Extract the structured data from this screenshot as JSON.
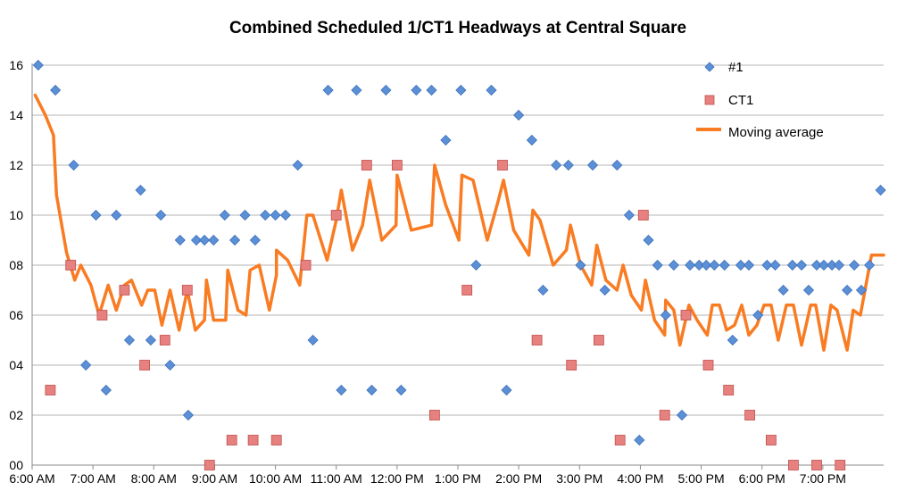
{
  "chart_data": {
    "type": "scatter",
    "title": "Combined Scheduled 1/CT1 Headways at Central Square",
    "xlabel": "",
    "ylabel": "",
    "x_range": [
      "6:00 AM",
      "8:00 PM"
    ],
    "y_range": [
      0,
      16
    ],
    "x_tick_labels": [
      "6:00 AM",
      "7:00 AM",
      "8:00 AM",
      "9:00 AM",
      "10:00 AM",
      "11:00 AM",
      "12:00 PM",
      "1:00 PM",
      "2:00 PM",
      "3:00 PM",
      "4:00 PM",
      "5:00 PM",
      "6:00 PM",
      "7:00 PM"
    ],
    "y_tick_labels": [
      "00",
      "02",
      "04",
      "06",
      "08",
      "10",
      "12",
      "14",
      "16"
    ],
    "gridlines": "horizontal",
    "legend_position": "right",
    "colors": {
      "#1": "#5b8fd6",
      "CT1": "#e6817f",
      "Moving average": "#f97b22"
    },
    "series": [
      {
        "name": "#1",
        "marker": "diamond",
        "points": [
          {
            "x": "6:06 AM",
            "y": 16
          },
          {
            "x": "6:23 AM",
            "y": 15
          },
          {
            "x": "6:41 AM",
            "y": 12
          },
          {
            "x": "6:53 AM",
            "y": 4
          },
          {
            "x": "7:03 AM",
            "y": 10
          },
          {
            "x": "7:13 AM",
            "y": 3
          },
          {
            "x": "7:23 AM",
            "y": 10
          },
          {
            "x": "7:36 AM",
            "y": 5
          },
          {
            "x": "7:47 AM",
            "y": 11
          },
          {
            "x": "7:57 AM",
            "y": 5
          },
          {
            "x": "8:07 AM",
            "y": 10
          },
          {
            "x": "8:16 AM",
            "y": 4
          },
          {
            "x": "8:26 AM",
            "y": 9
          },
          {
            "x": "8:34 AM",
            "y": 2
          },
          {
            "x": "8:42 AM",
            "y": 9
          },
          {
            "x": "8:50 AM",
            "y": 9
          },
          {
            "x": "8:59 AM",
            "y": 9
          },
          {
            "x": "9:10 AM",
            "y": 10
          },
          {
            "x": "9:20 AM",
            "y": 9
          },
          {
            "x": "9:30 AM",
            "y": 10
          },
          {
            "x": "9:40 AM",
            "y": 9
          },
          {
            "x": "9:50 AM",
            "y": 10
          },
          {
            "x": "10:00 AM",
            "y": 10
          },
          {
            "x": "10:10 AM",
            "y": 10
          },
          {
            "x": "10:22 AM",
            "y": 12
          },
          {
            "x": "10:37 AM",
            "y": 5
          },
          {
            "x": "10:52 AM",
            "y": 15
          },
          {
            "x": "11:05 AM",
            "y": 3
          },
          {
            "x": "11:20 AM",
            "y": 15
          },
          {
            "x": "11:35 AM",
            "y": 3
          },
          {
            "x": "11:49 AM",
            "y": 15
          },
          {
            "x": "12:04 PM",
            "y": 3
          },
          {
            "x": "12:19 PM",
            "y": 15
          },
          {
            "x": "12:34 PM",
            "y": 15
          },
          {
            "x": "12:48 PM",
            "y": 13
          },
          {
            "x": "1:03 PM",
            "y": 15
          },
          {
            "x": "1:18 PM",
            "y": 8
          },
          {
            "x": "1:33 PM",
            "y": 15
          },
          {
            "x": "1:48 PM",
            "y": 3
          },
          {
            "x": "2:00 PM",
            "y": 14
          },
          {
            "x": "2:13 PM",
            "y": 13
          },
          {
            "x": "2:24 PM",
            "y": 7
          },
          {
            "x": "2:37 PM",
            "y": 12
          },
          {
            "x": "2:49 PM",
            "y": 12
          },
          {
            "x": "3:01 PM",
            "y": 8
          },
          {
            "x": "3:13 PM",
            "y": 12
          },
          {
            "x": "3:25 PM",
            "y": 7
          },
          {
            "x": "3:37 PM",
            "y": 12
          },
          {
            "x": "3:49 PM",
            "y": 10
          },
          {
            "x": "3:59 PM",
            "y": 1
          },
          {
            "x": "4:08 PM",
            "y": 9
          },
          {
            "x": "4:17 PM",
            "y": 8
          },
          {
            "x": "4:25 PM",
            "y": 6
          },
          {
            "x": "4:33 PM",
            "y": 8
          },
          {
            "x": "4:41 PM",
            "y": 2
          },
          {
            "x": "4:49 PM",
            "y": 8
          },
          {
            "x": "4:58 PM",
            "y": 8
          },
          {
            "x": "5:05 PM",
            "y": 8
          },
          {
            "x": "5:13 PM",
            "y": 8
          },
          {
            "x": "5:23 PM",
            "y": 8
          },
          {
            "x": "5:31 PM",
            "y": 5
          },
          {
            "x": "5:39 PM",
            "y": 8
          },
          {
            "x": "5:47 PM",
            "y": 8
          },
          {
            "x": "5:56 PM",
            "y": 6
          },
          {
            "x": "6:05 PM",
            "y": 8
          },
          {
            "x": "6:13 PM",
            "y": 8
          },
          {
            "x": "6:21 PM",
            "y": 7
          },
          {
            "x": "6:30 PM",
            "y": 8
          },
          {
            "x": "6:39 PM",
            "y": 8
          },
          {
            "x": "6:46 PM",
            "y": 7
          },
          {
            "x": "6:54 PM",
            "y": 8
          },
          {
            "x": "7:01 PM",
            "y": 8
          },
          {
            "x": "7:09 PM",
            "y": 8
          },
          {
            "x": "7:16 PM",
            "y": 8
          },
          {
            "x": "7:24 PM",
            "y": 7
          },
          {
            "x": "7:31 PM",
            "y": 8
          },
          {
            "x": "7:38 PM",
            "y": 7
          },
          {
            "x": "7:46 PM",
            "y": 8
          },
          {
            "x": "7:57 PM",
            "y": 11
          }
        ]
      },
      {
        "name": "CT1",
        "marker": "square",
        "points": [
          {
            "x": "6:18 AM",
            "y": 3
          },
          {
            "x": "6:38 AM",
            "y": 8
          },
          {
            "x": "7:09 AM",
            "y": 6
          },
          {
            "x": "7:31 AM",
            "y": 7
          },
          {
            "x": "7:51 AM",
            "y": 4
          },
          {
            "x": "8:11 AM",
            "y": 5
          },
          {
            "x": "8:33 AM",
            "y": 7
          },
          {
            "x": "8:55 AM",
            "y": 0
          },
          {
            "x": "9:17 AM",
            "y": 1
          },
          {
            "x": "9:38 AM",
            "y": 1
          },
          {
            "x": "10:01 AM",
            "y": 1
          },
          {
            "x": "10:30 AM",
            "y": 8
          },
          {
            "x": "11:00 AM",
            "y": 10
          },
          {
            "x": "11:30 AM",
            "y": 12
          },
          {
            "x": "12:00 PM",
            "y": 12
          },
          {
            "x": "12:37 PM",
            "y": 2
          },
          {
            "x": "1:09 PM",
            "y": 7
          },
          {
            "x": "1:44 PM",
            "y": 12
          },
          {
            "x": "2:18 PM",
            "y": 5
          },
          {
            "x": "2:52 PM",
            "y": 4
          },
          {
            "x": "3:19 PM",
            "y": 5
          },
          {
            "x": "3:40 PM",
            "y": 1
          },
          {
            "x": "4:03 PM",
            "y": 10
          },
          {
            "x": "4:24 PM",
            "y": 2
          },
          {
            "x": "4:45 PM",
            "y": 6
          },
          {
            "x": "5:07 PM",
            "y": 4
          },
          {
            "x": "5:27 PM",
            "y": 3
          },
          {
            "x": "5:48 PM",
            "y": 2
          },
          {
            "x": "6:09 PM",
            "y": 1
          },
          {
            "x": "6:31 PM",
            "y": 0
          },
          {
            "x": "6:54 PM",
            "y": 0
          },
          {
            "x": "7:17 PM",
            "y": 0
          }
        ]
      },
      {
        "name": "Moving average",
        "marker": "line",
        "points": [
          {
            "x": "6:03 AM",
            "y": 14.8
          },
          {
            "x": "6:13 AM",
            "y": 14
          },
          {
            "x": "6:21 AM",
            "y": 13.2
          },
          {
            "x": "6:24 AM",
            "y": 10.8
          },
          {
            "x": "6:34 AM",
            "y": 8.5
          },
          {
            "x": "6:42 AM",
            "y": 7.4
          },
          {
            "x": "6:48 AM",
            "y": 8
          },
          {
            "x": "6:58 AM",
            "y": 7.2
          },
          {
            "x": "7:06 AM",
            "y": 6
          },
          {
            "x": "7:15 AM",
            "y": 7.2
          },
          {
            "x": "7:23 AM",
            "y": 6.2
          },
          {
            "x": "7:31 AM",
            "y": 7.2
          },
          {
            "x": "7:38 AM",
            "y": 7.4
          },
          {
            "x": "7:48 AM",
            "y": 6.4
          },
          {
            "x": "7:54 AM",
            "y": 7
          },
          {
            "x": "8:01 AM",
            "y": 7
          },
          {
            "x": "8:08 AM",
            "y": 5.6
          },
          {
            "x": "8:16 AM",
            "y": 7
          },
          {
            "x": "8:25 AM",
            "y": 5.4
          },
          {
            "x": "8:33 AM",
            "y": 7
          },
          {
            "x": "8:41 AM",
            "y": 5.4
          },
          {
            "x": "8:50 AM",
            "y": 5.8
          },
          {
            "x": "8:52 AM",
            "y": 7.4
          },
          {
            "x": "8:59 AM",
            "y": 5.8
          },
          {
            "x": "9:11 AM",
            "y": 5.8
          },
          {
            "x": "9:13 AM",
            "y": 7.8
          },
          {
            "x": "9:23 AM",
            "y": 6.2
          },
          {
            "x": "9:31 AM",
            "y": 6
          },
          {
            "x": "9:35 AM",
            "y": 7.8
          },
          {
            "x": "9:44 AM",
            "y": 8
          },
          {
            "x": "9:54 AM",
            "y": 6.2
          },
          {
            "x": "10:01 AM",
            "y": 7.6
          },
          {
            "x": "10:01 AM",
            "y": 8.6
          },
          {
            "x": "10:12 AM",
            "y": 8.2
          },
          {
            "x": "10:24 AM",
            "y": 7.2
          },
          {
            "x": "10:31 AM",
            "y": 10
          },
          {
            "x": "10:37 AM",
            "y": 10
          },
          {
            "x": "10:51 AM",
            "y": 8.2
          },
          {
            "x": "11:00 AM",
            "y": 9.8
          },
          {
            "x": "11:05 AM",
            "y": 11
          },
          {
            "x": "11:16 AM",
            "y": 8.6
          },
          {
            "x": "11:26 AM",
            "y": 9.6
          },
          {
            "x": "11:33 AM",
            "y": 11.4
          },
          {
            "x": "11:45 AM",
            "y": 9
          },
          {
            "x": "11:59 AM",
            "y": 9.6
          },
          {
            "x": "12:00 PM",
            "y": 11.6
          },
          {
            "x": "12:14 PM",
            "y": 9.4
          },
          {
            "x": "12:34 PM",
            "y": 9.6
          },
          {
            "x": "12:37 PM",
            "y": 12
          },
          {
            "x": "12:48 PM",
            "y": 10.4
          },
          {
            "x": "1:01 PM",
            "y": 9
          },
          {
            "x": "1:04 PM",
            "y": 11.6
          },
          {
            "x": "1:15 PM",
            "y": 11.4
          },
          {
            "x": "1:29 PM",
            "y": 9
          },
          {
            "x": "1:40 PM",
            "y": 10.6
          },
          {
            "x": "1:45 PM",
            "y": 11.4
          },
          {
            "x": "1:55 PM",
            "y": 9.4
          },
          {
            "x": "2:10 PM",
            "y": 8.4
          },
          {
            "x": "2:14 PM",
            "y": 10.2
          },
          {
            "x": "2:21 PM",
            "y": 9.8
          },
          {
            "x": "2:34 PM",
            "y": 8
          },
          {
            "x": "2:47 PM",
            "y": 8.6
          },
          {
            "x": "2:51 PM",
            "y": 9.6
          },
          {
            "x": "3:01 PM",
            "y": 8
          },
          {
            "x": "3:12 PM",
            "y": 7.2
          },
          {
            "x": "3:17 PM",
            "y": 8.8
          },
          {
            "x": "3:26 PM",
            "y": 7.4
          },
          {
            "x": "3:37 PM",
            "y": 7
          },
          {
            "x": "3:43 PM",
            "y": 8
          },
          {
            "x": "3:51 PM",
            "y": 6.8
          },
          {
            "x": "4:01 PM",
            "y": 6.2
          },
          {
            "x": "4:05 PM",
            "y": 7.4
          },
          {
            "x": "4:14 PM",
            "y": 5.8
          },
          {
            "x": "4:24 PM",
            "y": 5.2
          },
          {
            "x": "4:25 PM",
            "y": 6.6
          },
          {
            "x": "4:33 PM",
            "y": 6.2
          },
          {
            "x": "4:39 PM",
            "y": 4.8
          },
          {
            "x": "4:48 PM",
            "y": 6.4
          },
          {
            "x": "4:56 PM",
            "y": 5.8
          },
          {
            "x": "5:06 PM",
            "y": 5.2
          },
          {
            "x": "5:11 PM",
            "y": 6.4
          },
          {
            "x": "5:18 PM",
            "y": 6.4
          },
          {
            "x": "5:25 PM",
            "y": 5.4
          },
          {
            "x": "5:33 PM",
            "y": 5.6
          },
          {
            "x": "5:40 PM",
            "y": 6.4
          },
          {
            "x": "5:47 PM",
            "y": 5.2
          },
          {
            "x": "5:55 PM",
            "y": 5.6
          },
          {
            "x": "6:02 PM",
            "y": 6.4
          },
          {
            "x": "6:09 PM",
            "y": 6.4
          },
          {
            "x": "6:16 PM",
            "y": 5
          },
          {
            "x": "6:24 PM",
            "y": 6.4
          },
          {
            "x": "6:31 PM",
            "y": 6.4
          },
          {
            "x": "6:39 PM",
            "y": 4.8
          },
          {
            "x": "6:48 PM",
            "y": 6.4
          },
          {
            "x": "6:53 PM",
            "y": 6.4
          },
          {
            "x": "7:01 PM",
            "y": 4.6
          },
          {
            "x": "7:08 PM",
            "y": 6.4
          },
          {
            "x": "7:14 PM",
            "y": 6.2
          },
          {
            "x": "7:24 PM",
            "y": 4.6
          },
          {
            "x": "7:30 PM",
            "y": 6.2
          },
          {
            "x": "7:37 PM",
            "y": 6
          },
          {
            "x": "7:48 PM",
            "y": 8.4
          },
          {
            "x": "8:00 PM",
            "y": 8.4
          }
        ]
      }
    ]
  }
}
